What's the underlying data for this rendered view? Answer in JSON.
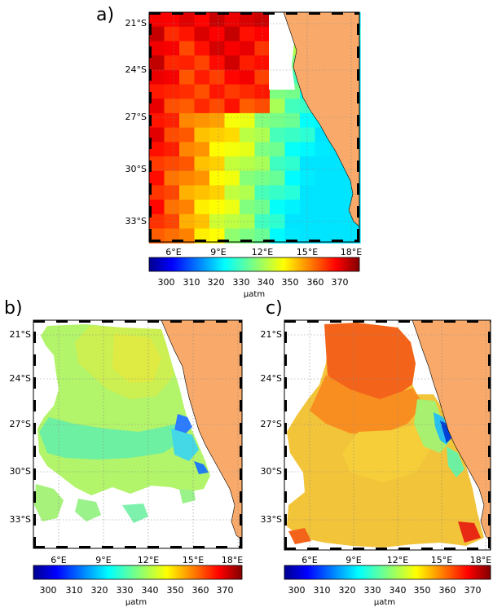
{
  "panels": [
    {
      "label": "a)",
      "lat_ticks": [
        "21°S",
        "24°S",
        "27°S",
        "30°S",
        "33°S"
      ],
      "lon_ticks": [
        "6°E",
        "9°E",
        "12°E",
        "15°E",
        "18°E"
      ],
      "colorbar": {
        "ticks": [
          "300",
          "310",
          "320",
          "330",
          "340",
          "350",
          "360",
          "370"
        ],
        "unit": "μatm",
        "range": [
          295,
          380
        ]
      }
    },
    {
      "label": "b)",
      "lat_ticks": [
        "21°S",
        "24°S",
        "27°S",
        "30°S",
        "33°S"
      ],
      "lon_ticks": [
        "6°E",
        "9°E",
        "12°E",
        "15°E",
        "18°E"
      ],
      "colorbar": {
        "ticks": [
          "300",
          "310",
          "320",
          "330",
          "340",
          "350",
          "360",
          "370"
        ],
        "unit": "μatm",
        "range": [
          295,
          380
        ]
      }
    },
    {
      "label": "c)",
      "lat_ticks": [
        "21°S",
        "24°S",
        "27°S",
        "30°S",
        "33°S"
      ],
      "lon_ticks": [
        "6°E",
        "9°E",
        "12°E",
        "15°E",
        "18°E"
      ],
      "colorbar": {
        "ticks": [
          "300",
          "310",
          "320",
          "330",
          "340",
          "350",
          "360",
          "370"
        ],
        "unit": "μatm",
        "range": [
          295,
          380
        ]
      }
    }
  ],
  "colors": {
    "land": "#f9aa6a",
    "ocean_nodata": "#ffffff",
    "grid": "#888888"
  },
  "colormap": "jet"
}
